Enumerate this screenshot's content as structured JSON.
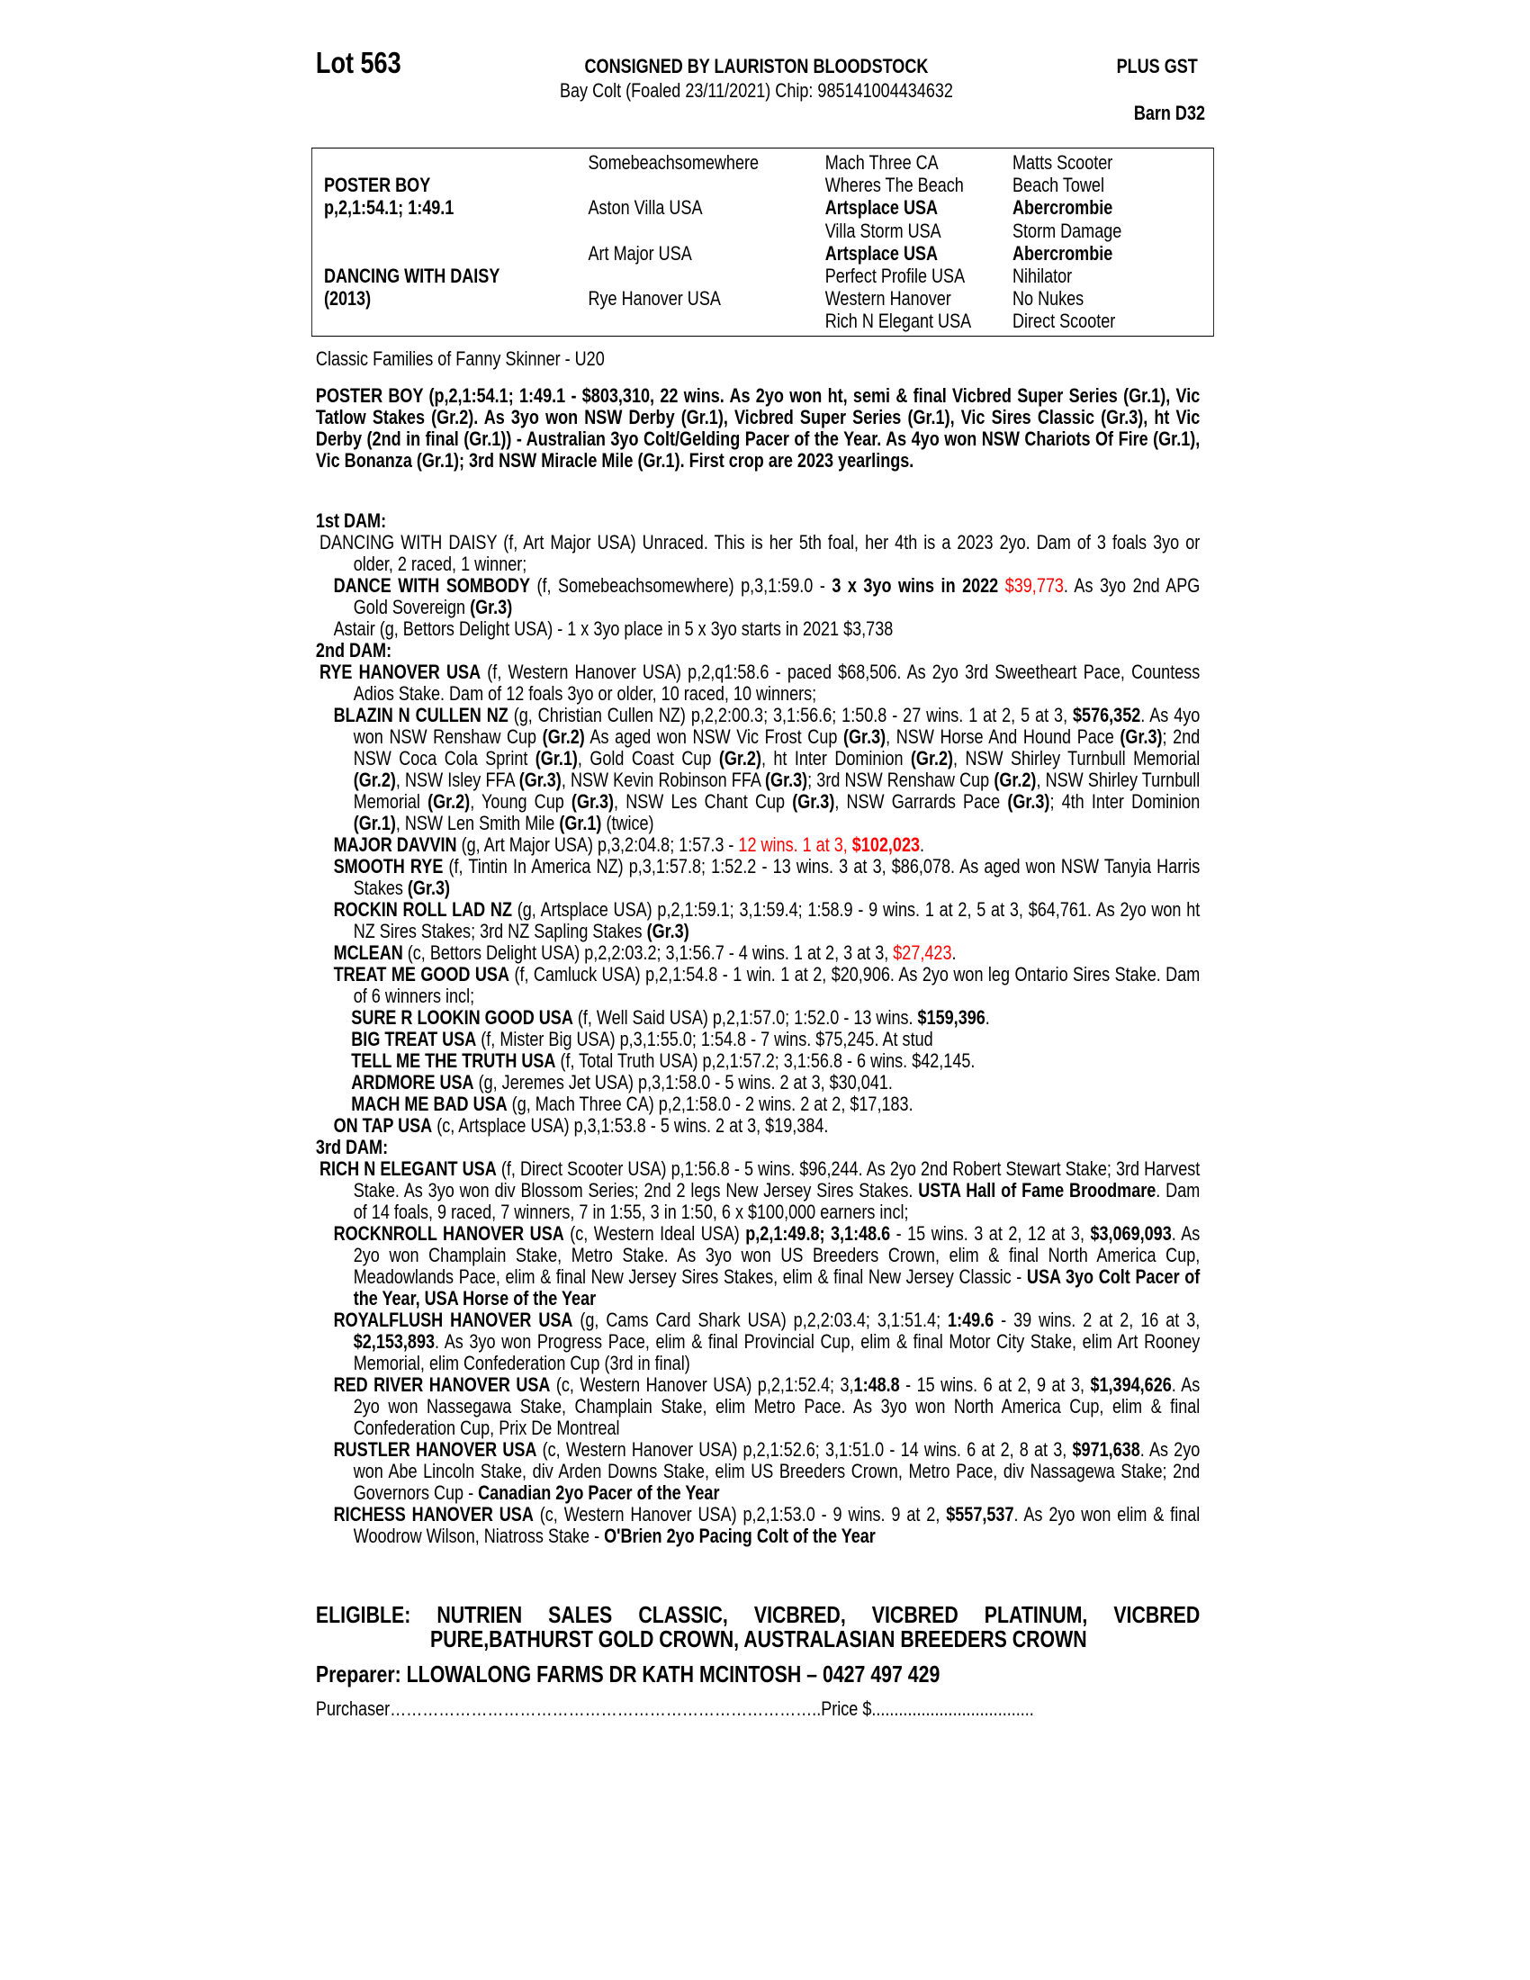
{
  "header": {
    "lot": "Lot 563",
    "consigned": "CONSIGNED BY LAURISTON BLOODSTOCK",
    "description": "Bay Colt (Foaled 23/11/2021) Chip: 985141004434632",
    "gst": "PLUS GST",
    "barn": "Barn D32"
  },
  "pedigree": {
    "col1": [
      {
        "t": ""
      },
      {
        "t": "POSTER BOY",
        "b": true
      },
      {
        "t": "p,2,1:54.1; 1:49.1",
        "b": true
      },
      {
        "t": ""
      },
      {
        "t": ""
      },
      {
        "t": "DANCING WITH DAISY",
        "b": true
      },
      {
        "t": "(2013)",
        "b": true
      },
      {
        "t": ""
      }
    ],
    "col2": [
      {
        "t": "Somebeachsomewhere"
      },
      {
        "t": ""
      },
      {
        "t": "Aston Villa USA"
      },
      {
        "t": ""
      },
      {
        "t": "Art Major USA"
      },
      {
        "t": ""
      },
      {
        "t": "Rye Hanover USA"
      },
      {
        "t": ""
      }
    ],
    "col3": [
      {
        "t": "Mach Three CA"
      },
      {
        "t": "Wheres The Beach"
      },
      {
        "t": "Artsplace USA",
        "b": true
      },
      {
        "t": "Villa Storm USA"
      },
      {
        "t": "Artsplace USA",
        "b": true
      },
      {
        "t": "Perfect Profile USA"
      },
      {
        "t": "Western Hanover"
      },
      {
        "t": "Rich N Elegant USA"
      }
    ],
    "col4": [
      {
        "t": "Matts Scooter"
      },
      {
        "t": "Beach Towel"
      },
      {
        "t": "Abercrombie",
        "b": true
      },
      {
        "t": "Storm Damage"
      },
      {
        "t": "Abercrombie",
        "b": true
      },
      {
        "t": "Nihilator"
      },
      {
        "t": "No Nukes"
      },
      {
        "t": "Direct Scooter"
      }
    ]
  },
  "family": "Classic Families of Fanny Skinner - U20",
  "sire_summary": "POSTER BOY (p,2,1:54.1; 1:49.1 - $803,310, 22 wins. As 2yo won ht, semi & final Vicbred Super Series (Gr.1), Vic Tatlow Stakes (Gr.2). As 3yo won NSW Derby (Gr.1), Vicbred Super Series (Gr.1), Vic Sires Classic (Gr.3), ht Vic Derby (2nd in final (Gr.1)) - Australian 3yo Colt/Gelding Pacer of the Year. As 4yo won NSW Chariots Of Fire (Gr.1), Vic Bonanza (Gr.1); 3rd NSW Miracle Mile (Gr.1). First crop are 2023 yearlings.",
  "colors": {
    "text": "#000000",
    "highlight": "#ff0000"
  },
  "paras": [
    {
      "level": "head",
      "runs": [
        {
          "t": "1st DAM:"
        }
      ]
    },
    {
      "level": "dam",
      "runs": [
        {
          "t": "DANCING WITH DAISY (f, Art Major USA) Unraced. This is her 5th foal, her 4th is a 2023 2yo. Dam of 3 foals 3yo or older, 2 raced, 1 winner;"
        }
      ]
    },
    {
      "level": "prog",
      "runs": [
        {
          "t": "DANCE WITH SOMBODY",
          "s": "b"
        },
        {
          "t": " (f, Somebeachsomewhere) p,3,1:59.0 - "
        },
        {
          "t": "3 x 3yo wins in 2022",
          "s": "b"
        },
        {
          "t": " "
        },
        {
          "t": "$39,773",
          "s": "r"
        },
        {
          "t": ". As 3yo 2nd APG Gold Sovereign "
        },
        {
          "t": "(Gr.3)",
          "s": "b"
        }
      ]
    },
    {
      "level": "prog",
      "runs": [
        {
          "t": "Astair (g, Bettors Delight USA) - 1 x 3yo place in 5 x 3yo starts in 2021 $3,738"
        }
      ]
    },
    {
      "level": "head",
      "runs": [
        {
          "t": "2nd DAM:"
        }
      ]
    },
    {
      "level": "dam",
      "runs": [
        {
          "t": "RYE HANOVER USA",
          "s": "b"
        },
        {
          "t": " (f, Western Hanover USA) p,2,q1:58.6 - paced $68,506. As 2yo 3rd Sweetheart Pace, Countess Adios Stake. Dam of 12 foals 3yo or older, 10 raced, 10 winners;"
        }
      ]
    },
    {
      "level": "prog",
      "runs": [
        {
          "t": "BLAZIN N CULLEN NZ",
          "s": "b"
        },
        {
          "t": " (g, Christian Cullen NZ) p,2,2:00.3; 3,1:56.6; 1:50.8 - 27 wins. 1 at 2, 5 at 3, "
        },
        {
          "t": "$576,352",
          "s": "b"
        },
        {
          "t": ". As 4yo won NSW Renshaw Cup "
        },
        {
          "t": "(Gr.2)",
          "s": "b"
        },
        {
          "t": " As aged won NSW Vic Frost Cup "
        },
        {
          "t": "(Gr.3)",
          "s": "b"
        },
        {
          "t": ", NSW Horse And Hound Pace "
        },
        {
          "t": "(Gr.3)",
          "s": "b"
        },
        {
          "t": "; 2nd NSW Coca Cola Sprint "
        },
        {
          "t": "(Gr.1)",
          "s": "b"
        },
        {
          "t": ", Gold Coast Cup "
        },
        {
          "t": "(Gr.2)",
          "s": "b"
        },
        {
          "t": ", ht Inter Dominion "
        },
        {
          "t": "(Gr.2)",
          "s": "b"
        },
        {
          "t": ", NSW Shirley Turnbull Memorial "
        },
        {
          "t": "(Gr.2)",
          "s": "b"
        },
        {
          "t": ", NSW Isley FFA "
        },
        {
          "t": "(Gr.3)",
          "s": "b"
        },
        {
          "t": ", NSW Kevin Robinson FFA "
        },
        {
          "t": "(Gr.3)",
          "s": "b"
        },
        {
          "t": "; 3rd NSW Renshaw Cup "
        },
        {
          "t": "(Gr.2)",
          "s": "b"
        },
        {
          "t": ", NSW Shirley Turnbull Memorial "
        },
        {
          "t": "(Gr.2)",
          "s": "b"
        },
        {
          "t": ", Young Cup "
        },
        {
          "t": "(Gr.3)",
          "s": "b"
        },
        {
          "t": ", NSW Les Chant Cup "
        },
        {
          "t": "(Gr.3)",
          "s": "b"
        },
        {
          "t": ", NSW Garrards Pace "
        },
        {
          "t": "(Gr.3)",
          "s": "b"
        },
        {
          "t": "; 4th Inter Dominion "
        },
        {
          "t": "(Gr.1)",
          "s": "b"
        },
        {
          "t": ", NSW Len Smith Mile "
        },
        {
          "t": "(Gr.1)",
          "s": "b"
        },
        {
          "t": " (twice)"
        }
      ]
    },
    {
      "level": "prog",
      "runs": [
        {
          "t": "MAJOR DAVVIN",
          "s": "b"
        },
        {
          "t": " (g, Art Major USA) p,3,2:04.8; 1:57.3 - "
        },
        {
          "t": "12 wins. 1 at 3, ",
          "s": "r"
        },
        {
          "t": "$102,023",
          "s": "b r"
        },
        {
          "t": "."
        }
      ]
    },
    {
      "level": "prog",
      "runs": [
        {
          "t": "SMOOTH RYE",
          "s": "b"
        },
        {
          "t": " (f, Tintin In America NZ) p,3,1:57.8; 1:52.2 - 13 wins. 3 at 3, $86,078. As aged won NSW Tanyia Harris Stakes "
        },
        {
          "t": "(Gr.3)",
          "s": "b"
        }
      ]
    },
    {
      "level": "prog",
      "runs": [
        {
          "t": "ROCKIN ROLL LAD NZ",
          "s": "b"
        },
        {
          "t": " (g, Artsplace USA) p,2,1:59.1; 3,1:59.4; 1:58.9 - 9 wins. 1 at 2, 5 at 3, $64,761. As 2yo won ht NZ Sires Stakes; 3rd NZ Sapling Stakes "
        },
        {
          "t": "(Gr.3)",
          "s": "b"
        }
      ]
    },
    {
      "level": "prog",
      "runs": [
        {
          "t": "MCLEAN",
          "s": "b"
        },
        {
          "t": " (c, Bettors Delight USA) p,2,2:03.2; 3,1:56.7 - 4 wins. 1 at 2, 3 at 3, "
        },
        {
          "t": "$27,423",
          "s": "r"
        },
        {
          "t": "."
        }
      ]
    },
    {
      "level": "prog",
      "runs": [
        {
          "t": "TREAT ME GOOD USA",
          "s": "b"
        },
        {
          "t": " (f, Camluck USA) p,2,1:54.8 - 1 win. 1 at 2, $20,906. As 2yo won leg Ontario Sires Stake. Dam of 6 winners incl;"
        }
      ]
    },
    {
      "level": "grand",
      "runs": [
        {
          "t": "SURE R LOOKIN GOOD USA",
          "s": "b"
        },
        {
          "t": " (f, Well Said USA) p,2,1:57.0; 1:52.0 - 13 wins. "
        },
        {
          "t": "$159,396",
          "s": "b"
        },
        {
          "t": "."
        }
      ]
    },
    {
      "level": "grand",
      "runs": [
        {
          "t": "BIG TREAT USA",
          "s": "b"
        },
        {
          "t": " (f, Mister Big USA) p,3,1:55.0; 1:54.8 - 7 wins. $75,245. At stud"
        }
      ]
    },
    {
      "level": "grand",
      "runs": [
        {
          "t": "TELL ME THE TRUTH USA",
          "s": "b"
        },
        {
          "t": " (f, Total Truth USA) p,2,1:57.2; 3,1:56.8 - 6 wins. $42,145."
        }
      ]
    },
    {
      "level": "grand",
      "runs": [
        {
          "t": "ARDMORE USA",
          "s": "b"
        },
        {
          "t": " (g, Jeremes Jet USA) p,3,1:58.0 - 5 wins. 2 at 3, $30,041."
        }
      ]
    },
    {
      "level": "grand",
      "runs": [
        {
          "t": "MACH ME BAD USA",
          "s": "b"
        },
        {
          "t": " (g, Mach Three CA) p,2,1:58.0 - 2 wins. 2 at 2, $17,183."
        }
      ]
    },
    {
      "level": "prog",
      "runs": [
        {
          "t": "ON TAP USA",
          "s": "b"
        },
        {
          "t": " (c, Artsplace USA) p,3,1:53.8 - 5 wins. 2 at 3, $19,384."
        }
      ]
    },
    {
      "level": "head",
      "runs": [
        {
          "t": "3rd DAM:"
        }
      ]
    },
    {
      "level": "dam",
      "runs": [
        {
          "t": "RICH N ELEGANT USA",
          "s": "b"
        },
        {
          "t": " (f, Direct Scooter USA) p,1:56.8 - 5 wins. $96,244. As 2yo 2nd Robert Stewart Stake; 3rd Harvest Stake. As 3yo won div Blossom Series; 2nd 2 legs New Jersey Sires Stakes. "
        },
        {
          "t": "USTA Hall of Fame Broodmare",
          "s": "b"
        },
        {
          "t": ". Dam of 14 foals, 9 raced, 7 winners, 7 in 1:55, 3 in 1:50, 6 x $100,000 earners incl;"
        }
      ]
    },
    {
      "level": "prog",
      "runs": [
        {
          "t": "ROCKNROLL HANOVER USA",
          "s": "b"
        },
        {
          "t": " (c, Western Ideal USA) "
        },
        {
          "t": "p,2,1:49.8; 3,1:48.6",
          "s": "b"
        },
        {
          "t": " - 15 wins. 3 at 2, 12 at 3, "
        },
        {
          "t": "$3,069,093",
          "s": "b"
        },
        {
          "t": ". As 2yo won Champlain Stake, Metro Stake. As 3yo won US Breeders Crown, elim & final North America Cup, Meadowlands Pace, elim & final New Jersey Sires Stakes, elim & final New Jersey Classic - "
        },
        {
          "t": "USA 3yo Colt Pacer of the Year, USA Horse of the Year",
          "s": "b"
        }
      ]
    },
    {
      "level": "prog",
      "runs": [
        {
          "t": "ROYALFLUSH HANOVER USA",
          "s": "b"
        },
        {
          "t": " (g, Cams Card Shark USA) p,2,2:03.4; 3,1:51.4; "
        },
        {
          "t": "1:49.6",
          "s": "b"
        },
        {
          "t": " - 39 wins. 2 at 2, 16 at 3, "
        },
        {
          "t": "$2,153,893",
          "s": "b"
        },
        {
          "t": ". As 3yo won Progress Pace, elim & final Provincial Cup, elim & final Motor City Stake, elim Art Rooney Memorial, elim Confederation Cup (3rd in final)"
        }
      ]
    },
    {
      "level": "prog",
      "runs": [
        {
          "t": "RED RIVER HANOVER USA",
          "s": "b"
        },
        {
          "t": " (c, Western Hanover USA) p,2,1:52.4; 3,"
        },
        {
          "t": "1:48.8",
          "s": "b"
        },
        {
          "t": " - 15 wins. 6 at 2, 9 at 3, "
        },
        {
          "t": "$1,394,626",
          "s": "b"
        },
        {
          "t": ". As 2yo won Nassegawa Stake, Champlain Stake, elim Metro Pace. As 3yo won North America Cup, elim & final Confederation Cup, Prix De Montreal"
        }
      ]
    },
    {
      "level": "prog",
      "runs": [
        {
          "t": "RUSTLER HANOVER USA",
          "s": "b"
        },
        {
          "t": " (c, Western Hanover USA) p,2,1:52.6; 3,1:51.0 - 14 wins. 6 at 2, 8 at 3, "
        },
        {
          "t": "$971,638",
          "s": "b"
        },
        {
          "t": ". As 2yo won Abe Lincoln Stake, div Arden Downs Stake, elim US Breeders Crown, Metro Pace, div Nassagewa Stake; 2nd Governors Cup - "
        },
        {
          "t": "Canadian 2yo Pacer of the Year",
          "s": "b"
        }
      ]
    },
    {
      "level": "prog",
      "runs": [
        {
          "t": "RICHESS HANOVER USA",
          "s": "b"
        },
        {
          "t": " (c, Western Hanover USA) p,2,1:53.0 - 9 wins. 9 at 2, "
        },
        {
          "t": "$557,537",
          "s": "b"
        },
        {
          "t": ". As 2yo won elim & final Woodrow Wilson, Niatross Stake - "
        },
        {
          "t": "O'Brien 2yo Pacing Colt of the Year",
          "s": "b"
        }
      ]
    }
  ],
  "eligible": "ELIGIBLE: NUTRIEN SALES CLASSIC, VICBRED, VICBRED PLATINUM, VICBRED PURE,BATHURST GOLD CROWN, AUSTRALASIAN BREEDERS CROWN",
  "preparer": "Preparer: LLOWALONG FARMS DR KATH MCINTOSH – 0427 497 429",
  "purchaser_line": "Purchaser……………………………………………………………………..Price $...................................."
}
